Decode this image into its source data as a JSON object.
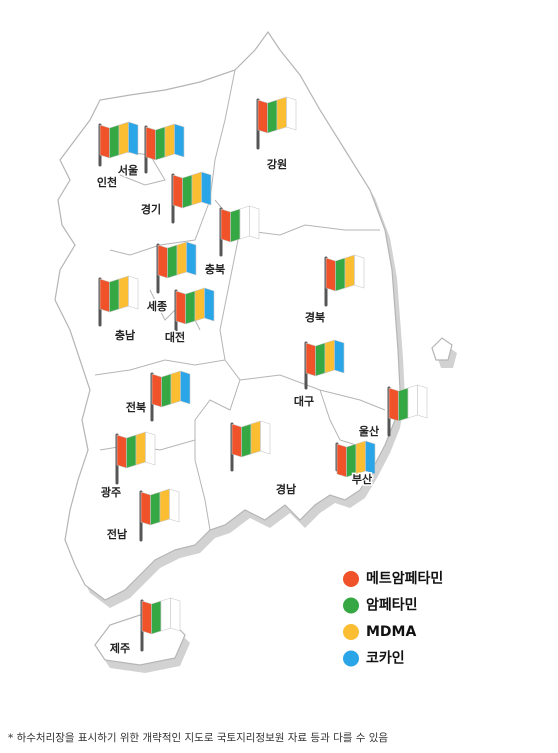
{
  "legend": [
    {
      "name": "메트암페타민",
      "color": "#f0522a"
    },
    {
      "name": "암페타민",
      "color": "#35a844"
    },
    {
      "name": "MDMA",
      "color": "#fbbd32"
    },
    {
      "name": "코카인",
      "color": "#2aa5e8"
    }
  ],
  "regions": [
    {
      "label": "인천",
      "detected": [
        true,
        true,
        true,
        true
      ]
    },
    {
      "label": "서울",
      "detected": [
        true,
        true,
        true,
        true
      ]
    },
    {
      "label": "경기",
      "detected": [
        true,
        true,
        true,
        true
      ]
    },
    {
      "label": "강원",
      "detected": [
        true,
        true,
        true,
        false
      ]
    },
    {
      "label": "충북",
      "detected": [
        true,
        true,
        false,
        false
      ]
    },
    {
      "label": "세종",
      "detected": [
        true,
        true,
        true,
        true
      ]
    },
    {
      "label": "충남",
      "detected": [
        true,
        true,
        true,
        false
      ]
    },
    {
      "label": "대전",
      "detected": [
        true,
        true,
        true,
        true
      ]
    },
    {
      "label": "경북",
      "detected": [
        true,
        true,
        true,
        false
      ]
    },
    {
      "label": "대구",
      "detected": [
        true,
        true,
        true,
        true
      ]
    },
    {
      "label": "울산",
      "detected": [
        true,
        true,
        false,
        false
      ]
    },
    {
      "label": "전북",
      "detected": [
        true,
        true,
        true,
        true
      ]
    },
    {
      "label": "광주",
      "detected": [
        true,
        true,
        true,
        false
      ]
    },
    {
      "label": "경남",
      "detected": [
        true,
        true,
        true,
        false
      ]
    },
    {
      "label": "부산",
      "detected": [
        true,
        true,
        true,
        true
      ]
    },
    {
      "label": "전남",
      "detected": [
        true,
        true,
        true,
        false
      ]
    },
    {
      "label": "제주",
      "detected": [
        true,
        true,
        false,
        false
      ]
    }
  ],
  "footnote": "* 하수처리장을 표시하기 위한 개략적인 지도로 국토지리정보원 자료 등과 다를 수 있음"
}
